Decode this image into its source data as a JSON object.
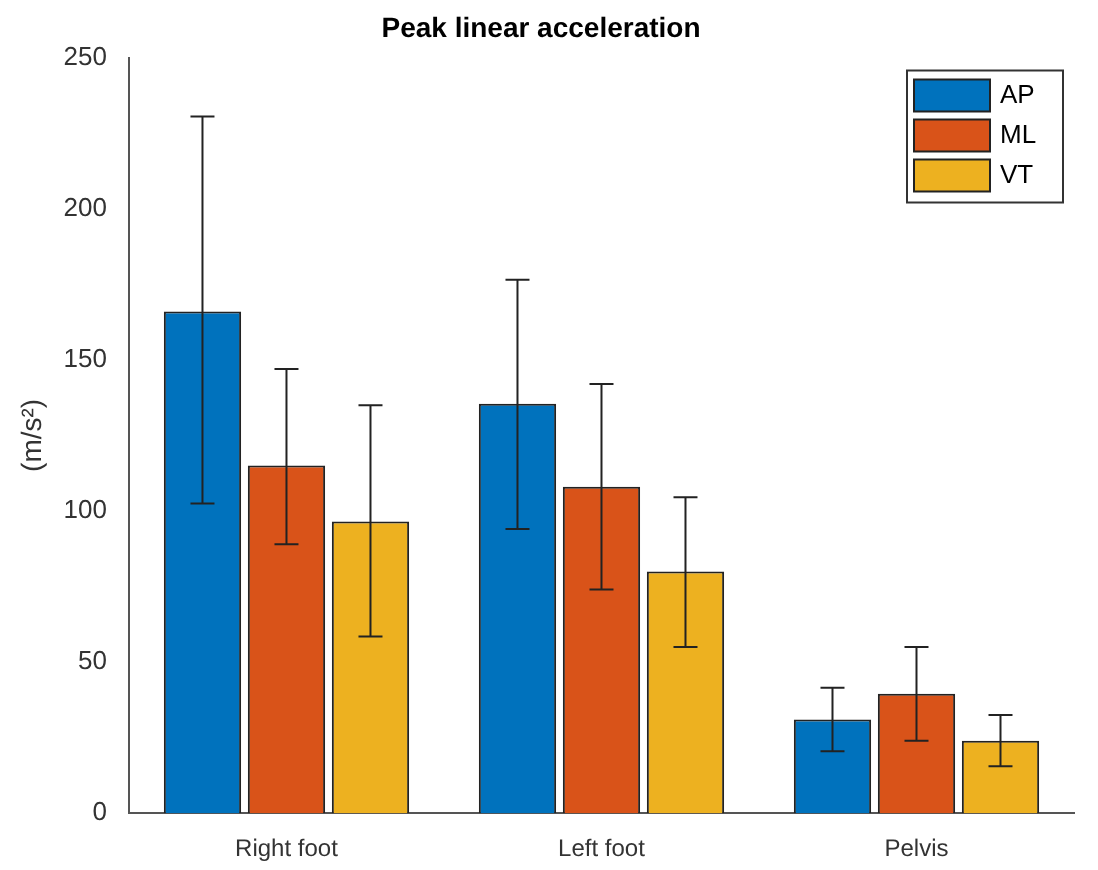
{
  "chart_data": {
    "type": "bar",
    "title": "Peak linear acceleration",
    "ylabel": "(m/s²)",
    "categories": [
      "Right foot",
      "Left foot",
      "Pelvis"
    ],
    "series": [
      {
        "name": "AP",
        "color": "#0072bd",
        "values": [
          166,
          135.5,
          31
        ],
        "errors": [
          [
            102.5,
            230.5
          ],
          [
            94,
            176.5
          ],
          [
            20.5,
            41.5
          ]
        ]
      },
      {
        "name": "ML",
        "color": "#d95319",
        "values": [
          115,
          108,
          39.5
        ],
        "errors": [
          [
            89,
            147
          ],
          [
            74,
            142
          ],
          [
            24,
            55
          ]
        ]
      },
      {
        "name": "VT",
        "color": "#edb120",
        "values": [
          96.5,
          80,
          24
        ],
        "errors": [
          [
            58.5,
            135
          ],
          [
            55,
            104.5
          ],
          [
            15.5,
            32.5
          ]
        ]
      }
    ],
    "ylim": [
      0,
      250
    ],
    "yticks": [
      0,
      50,
      100,
      150,
      200,
      250
    ],
    "grid": false,
    "legend": "top right"
  }
}
